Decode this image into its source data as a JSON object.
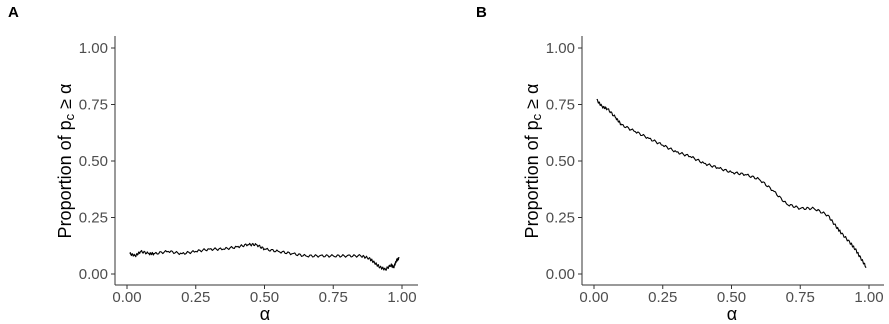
{
  "chart_data": [
    {
      "type": "line",
      "panel_label": "A",
      "xlabel": "α",
      "ylabel": "Proportion of p_c ≥ α",
      "ylabel_parts": {
        "pre": "Proportion of p",
        "sub": "c",
        "post": " ≥ α"
      },
      "xlim": [
        0,
        1
      ],
      "ylim": [
        0,
        1
      ],
      "xticks": [
        "0.00",
        "0.25",
        "0.50",
        "0.75",
        "1.00"
      ],
      "yticks": [
        "0.00",
        "0.25",
        "0.50",
        "0.75",
        "1.00"
      ],
      "grid": false,
      "series": [
        {
          "x": [
            0.01,
            0.03,
            0.05,
            0.08,
            0.1,
            0.15,
            0.2,
            0.25,
            0.3,
            0.35,
            0.4,
            0.44,
            0.47,
            0.5,
            0.55,
            0.6,
            0.65,
            0.7,
            0.75,
            0.8,
            0.85,
            0.88,
            0.9,
            0.92,
            0.94,
            0.96,
            0.97,
            0.98,
            0.99
          ],
          "y": [
            0.09,
            0.08,
            0.1,
            0.09,
            0.09,
            0.1,
            0.09,
            0.1,
            0.11,
            0.11,
            0.12,
            0.13,
            0.13,
            0.11,
            0.1,
            0.09,
            0.08,
            0.08,
            0.08,
            0.08,
            0.08,
            0.07,
            0.05,
            0.03,
            0.02,
            0.04,
            0.03,
            0.06,
            0.07
          ]
        }
      ]
    },
    {
      "type": "line",
      "panel_label": "B",
      "xlabel": "α",
      "ylabel": "Proportion of p_c ≥ α",
      "ylabel_parts": {
        "pre": "Proportion of p",
        "sub": "c",
        "post": " ≥ α"
      },
      "xlim": [
        0,
        1
      ],
      "ylim": [
        0,
        1
      ],
      "xticks": [
        "0.00",
        "0.25",
        "0.50",
        "0.75",
        "1.00"
      ],
      "yticks": [
        "0.00",
        "0.25",
        "0.50",
        "0.75",
        "1.00"
      ],
      "grid": false,
      "series": [
        {
          "x": [
            0.01,
            0.03,
            0.05,
            0.08,
            0.1,
            0.15,
            0.2,
            0.25,
            0.3,
            0.35,
            0.4,
            0.45,
            0.5,
            0.55,
            0.6,
            0.65,
            0.7,
            0.75,
            0.8,
            0.85,
            0.88,
            0.9,
            0.93,
            0.95,
            0.97,
            0.99
          ],
          "y": [
            0.77,
            0.74,
            0.73,
            0.69,
            0.66,
            0.63,
            0.6,
            0.57,
            0.54,
            0.52,
            0.49,
            0.47,
            0.45,
            0.44,
            0.42,
            0.37,
            0.31,
            0.29,
            0.29,
            0.26,
            0.21,
            0.18,
            0.14,
            0.11,
            0.07,
            0.03
          ]
        }
      ]
    }
  ]
}
